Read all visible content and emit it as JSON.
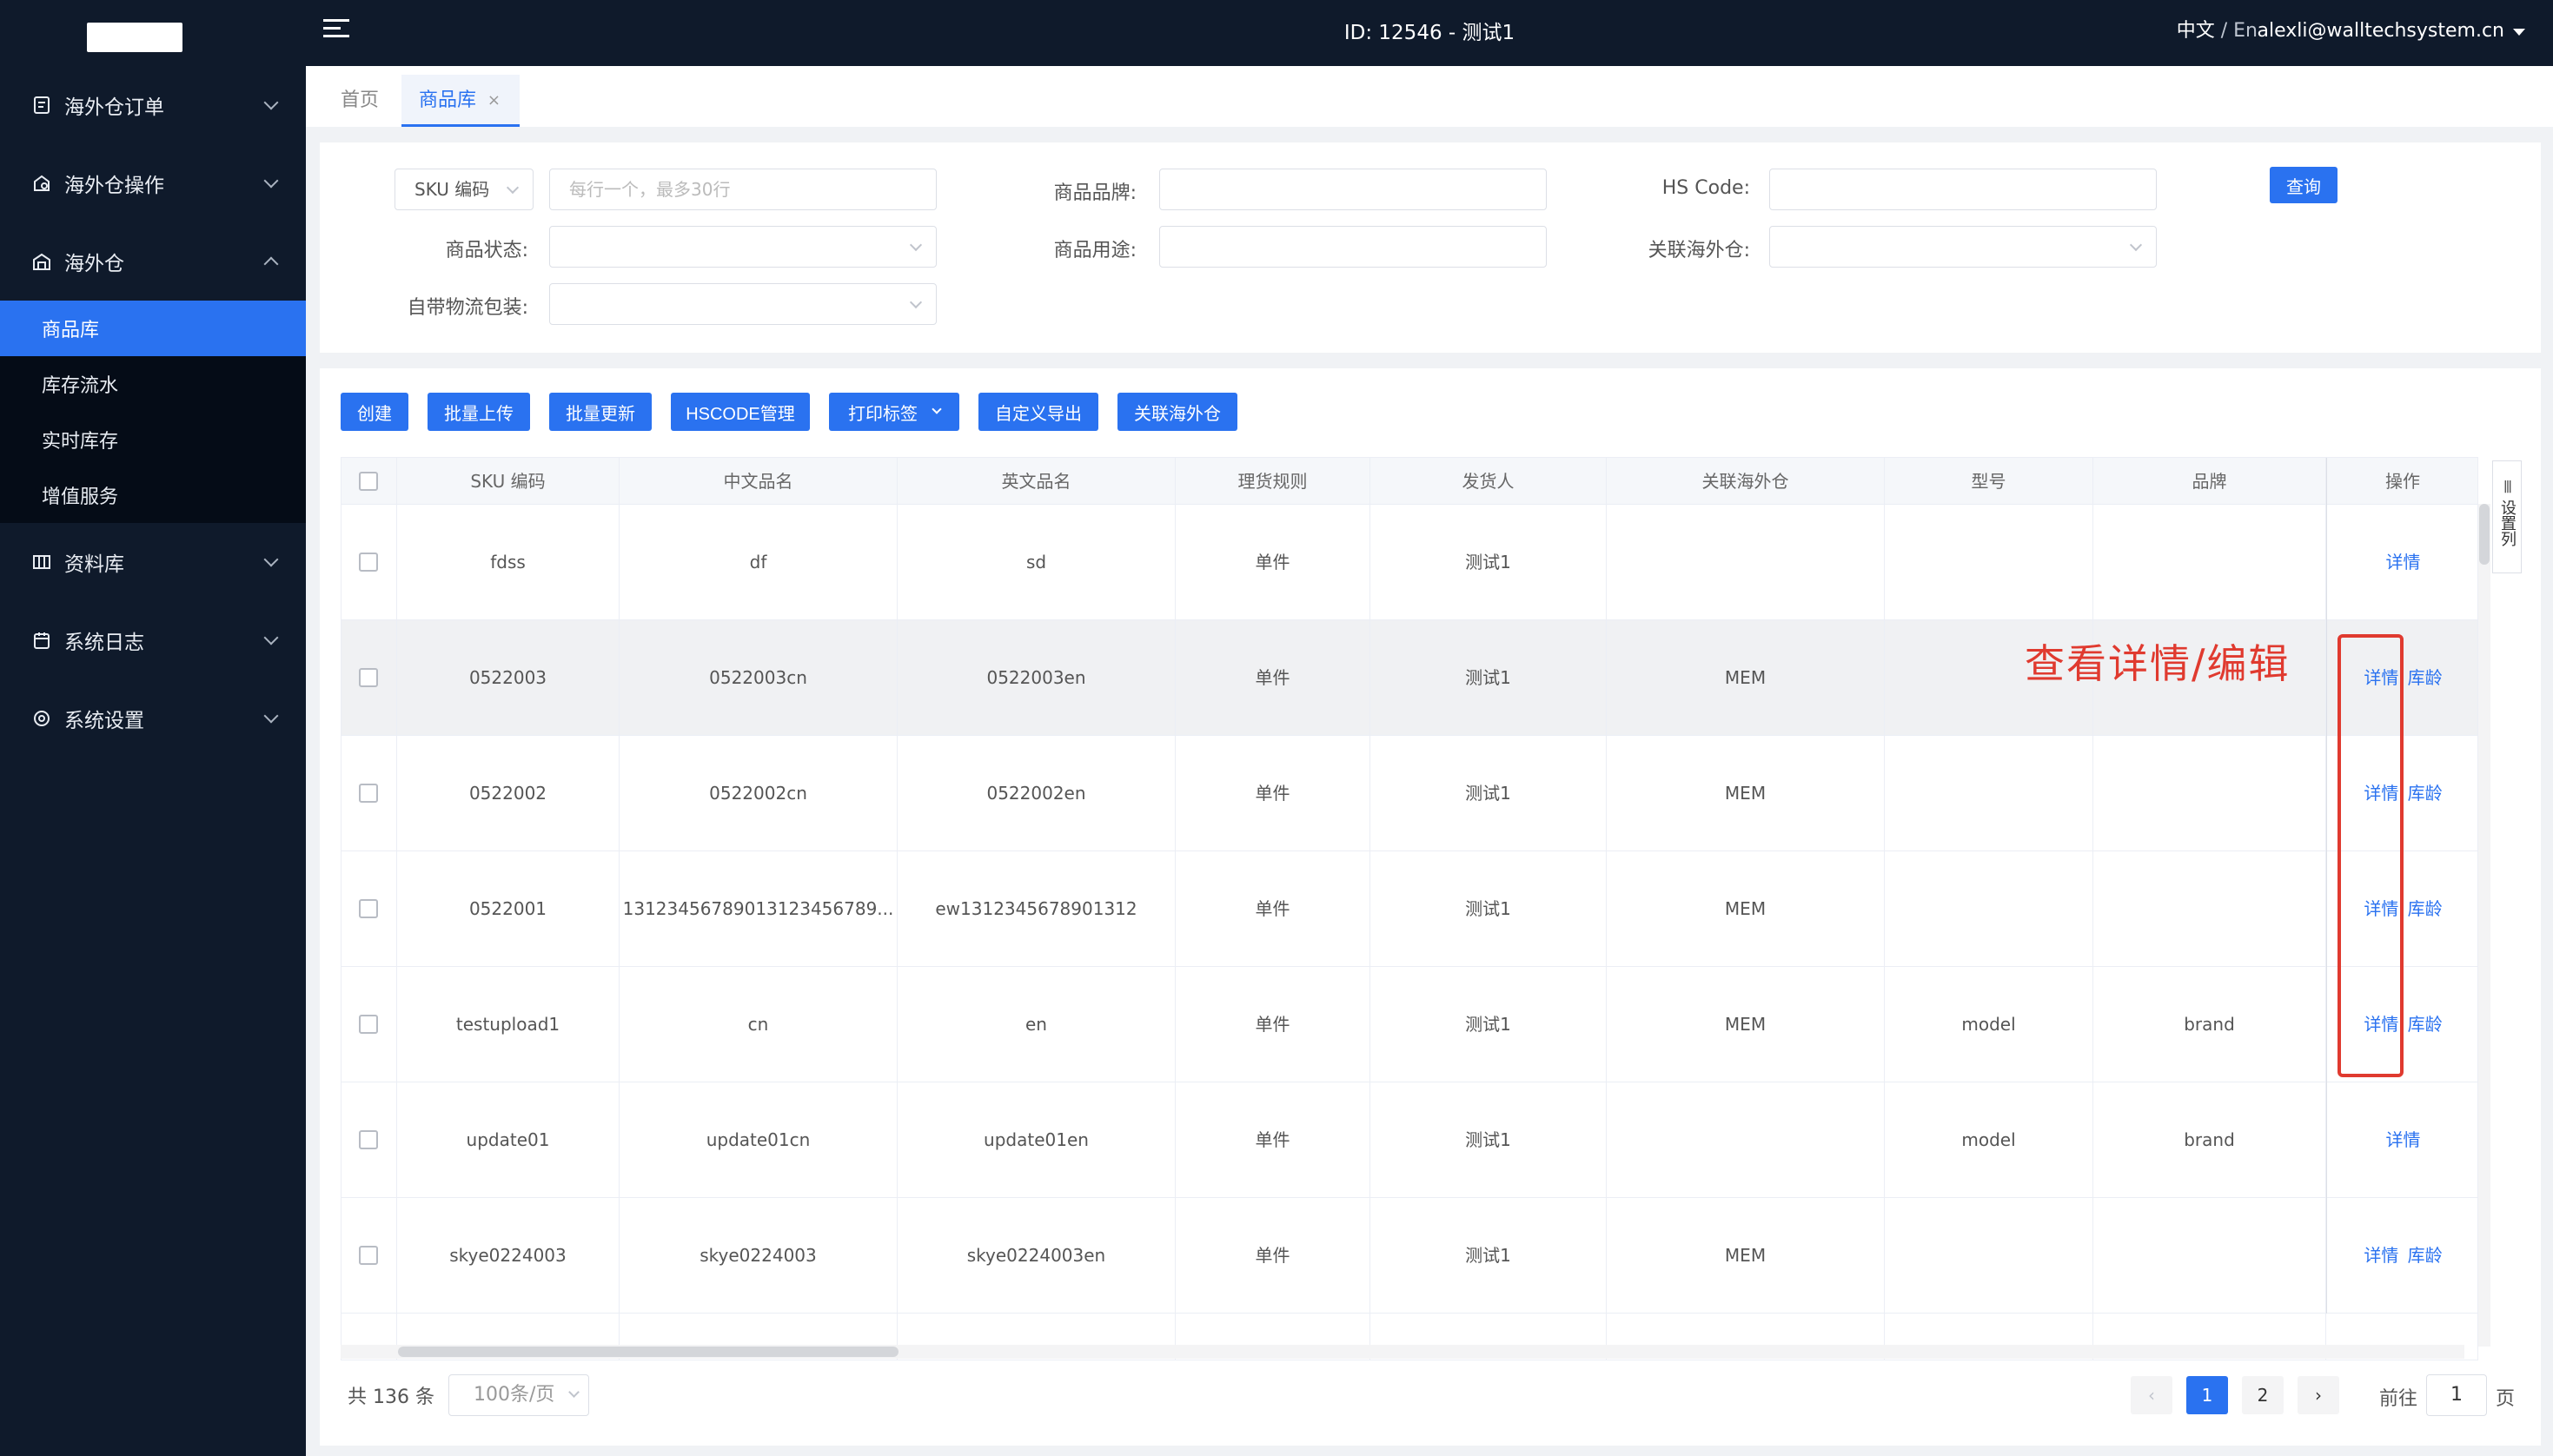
{
  "header": {
    "title": "ID: 12546 - 测试1",
    "lang_cn": "中文",
    "lang_sep": " / ",
    "lang_en": "En",
    "user": "alexli@walltechsystem.cn"
  },
  "sidebar": {
    "menus": [
      {
        "label": "海外仓订单",
        "icon": "order-icon"
      },
      {
        "label": "海外仓操作",
        "icon": "operation-icon"
      },
      {
        "label": "海外仓",
        "icon": "warehouse-icon",
        "open": true
      }
    ],
    "submenu": [
      "商品库",
      "库存流水",
      "实时库存",
      "增值服务"
    ],
    "menus_after": [
      {
        "label": "资料库",
        "icon": "library-icon"
      },
      {
        "label": "系统日志",
        "icon": "log-icon"
      },
      {
        "label": "系统设置",
        "icon": "settings-icon"
      }
    ]
  },
  "tabs": {
    "home": "首页",
    "active": "商品库",
    "close": "×"
  },
  "search": {
    "sku_select": "SKU 编码",
    "sku_placeholder": "每行一个，最多30行",
    "brand_label": "商品品牌:",
    "hscode_label": "HS Code:",
    "status_label": "商品状态:",
    "usage_label": "商品用途:",
    "warehouse_label": "关联海外仓:",
    "packaging_label": "自带物流包装:",
    "query_button": "查询"
  },
  "toolbar": {
    "create": "创建",
    "bulk_upload": "批量上传",
    "bulk_update": "批量更新",
    "hscode_manage": "HSCODE管理",
    "print_label": "打印标签",
    "custom_export": "自定义导出",
    "link_warehouse": "关联海外仓"
  },
  "table": {
    "columns": [
      "SKU 编码",
      "中文品名",
      "英文品名",
      "理货规则",
      "发货人",
      "关联海外仓",
      "型号",
      "品牌",
      "操作"
    ],
    "detail_label": "详情",
    "age_label": "库龄",
    "rows": [
      {
        "sku": "fdss",
        "cn": "df",
        "en": "sd",
        "rule": "单件",
        "shipper": "测试1",
        "warehouse": "",
        "model": "",
        "brand": ""
      },
      {
        "sku": "0522003",
        "cn": "0522003cn",
        "en": "0522003en",
        "rule": "单件",
        "shipper": "测试1",
        "warehouse": "MEM",
        "model": "",
        "brand": ""
      },
      {
        "sku": "0522002",
        "cn": "0522002cn",
        "en": "0522002en",
        "rule": "单件",
        "shipper": "测试1",
        "warehouse": "MEM",
        "model": "",
        "brand": ""
      },
      {
        "sku": "0522001",
        "cn": "13123456789013123456789...",
        "en": "ew1312345678901312",
        "rule": "单件",
        "shipper": "测试1",
        "warehouse": "MEM",
        "model": "",
        "brand": ""
      },
      {
        "sku": "testupload1",
        "cn": "cn",
        "en": "en",
        "rule": "单件",
        "shipper": "测试1",
        "warehouse": "MEM",
        "model": "model",
        "brand": "brand"
      },
      {
        "sku": "update01",
        "cn": "update01cn",
        "en": "update01en",
        "rule": "单件",
        "shipper": "测试1",
        "warehouse": "",
        "model": "model",
        "brand": "brand"
      },
      {
        "sku": "skye0224003",
        "cn": "skye0224003",
        "en": "skye0224003en",
        "rule": "单件",
        "shipper": "测试1",
        "warehouse": "MEM",
        "model": "",
        "brand": ""
      }
    ],
    "set_columns": "设置列"
  },
  "annotation": "查看详情/编辑",
  "pagination": {
    "total": "共 136 条",
    "page_size": "100条/页",
    "prev": "‹",
    "next": "›",
    "pages": [
      "1",
      "2"
    ],
    "goto_label": "前往",
    "goto_value": "1",
    "page_word": "页"
  }
}
